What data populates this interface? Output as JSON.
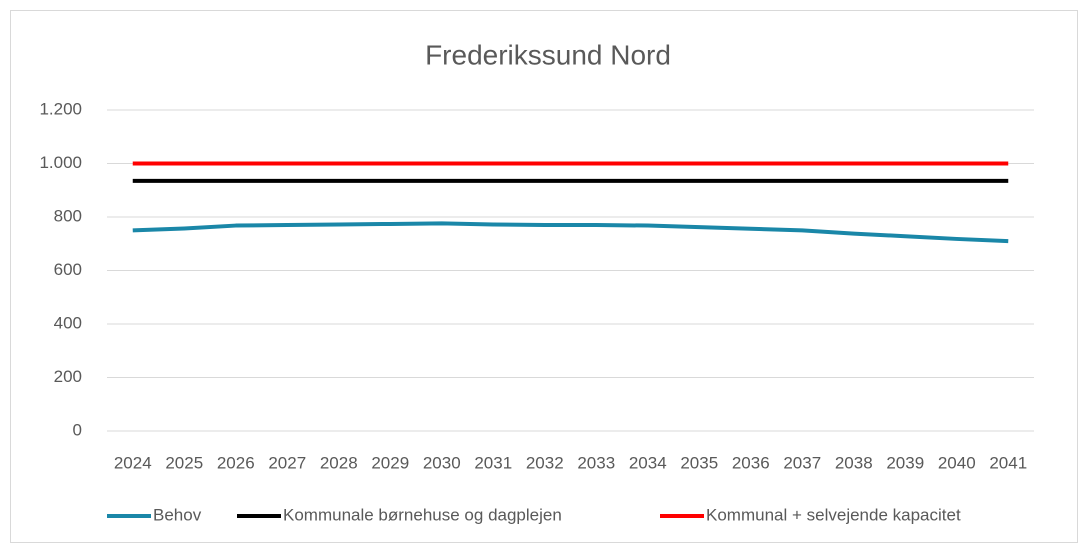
{
  "chart_data": {
    "type": "line",
    "title": "Frederikssund Nord",
    "categories": [
      "2024",
      "2025",
      "2026",
      "2027",
      "2028",
      "2029",
      "2030",
      "2031",
      "2032",
      "2033",
      "2034",
      "2035",
      "2036",
      "2037",
      "2038",
      "2039",
      "2040",
      "2041"
    ],
    "series": [
      {
        "name": "Behov",
        "color": "#1a87a8",
        "values": [
          750,
          757,
          768,
          770,
          772,
          774,
          776,
          772,
          770,
          770,
          768,
          762,
          756,
          750,
          738,
          728,
          718,
          710
        ]
      },
      {
        "name": "Kommunale børnehuse og dagplejen",
        "color": "#000000",
        "values": [
          935,
          935,
          935,
          935,
          935,
          935,
          935,
          935,
          935,
          935,
          935,
          935,
          935,
          935,
          935,
          935,
          935,
          935
        ]
      },
      {
        "name": "Kommunal + selvejende kapacitet",
        "color": "#ff0000",
        "values": [
          1000,
          1000,
          1000,
          1000,
          1000,
          1000,
          1000,
          1000,
          1000,
          1000,
          1000,
          1000,
          1000,
          1000,
          1000,
          1000,
          1000,
          1000
        ]
      }
    ],
    "ylim": [
      0,
      1200
    ],
    "yticks": [
      0,
      200,
      400,
      600,
      800,
      {
        "value": 1000,
        "label": "1.000"
      },
      {
        "value": 1200,
        "label": "1.200"
      }
    ],
    "grid": true,
    "legend": "bottom"
  }
}
